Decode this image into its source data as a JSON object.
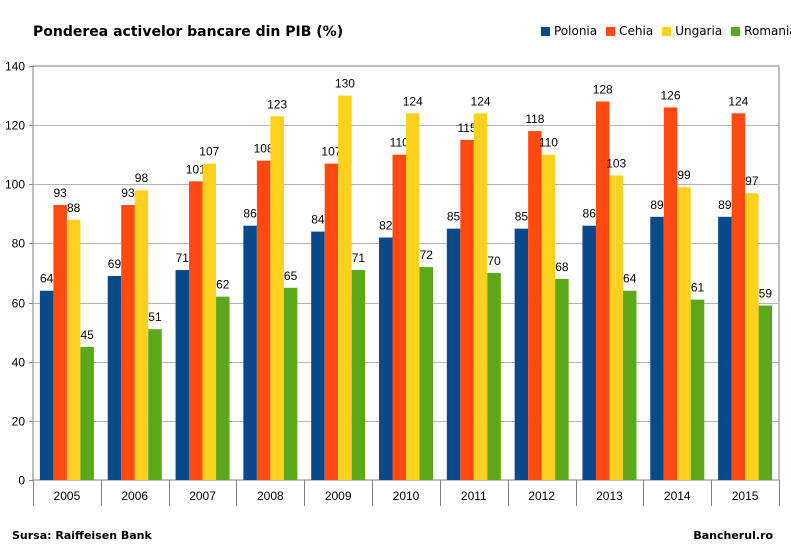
{
  "header": {
    "title": "Ponderea activelor bancare din PIB (%)"
  },
  "footer": {
    "source": "Sursa: Raiffeisen Bank",
    "brand": "Bancherul.ro"
  },
  "colors": {
    "Polonia": "#0a4a8a",
    "Cehia": "#ff4a11",
    "Ungaria": "#ffd11f",
    "Romania": "#5ca81a",
    "grid": "#b3b3b3",
    "axis": "#7f7f7f"
  },
  "chart_data": {
    "type": "bar",
    "title": "Ponderea activelor bancare din PIB (%)",
    "xlabel": "",
    "ylabel": "",
    "ylim": [
      0,
      140
    ],
    "yticks": [
      "0",
      "20",
      "40",
      "60",
      "80",
      "100",
      "120",
      "140"
    ],
    "grid": true,
    "legend_position": "top-right",
    "categories": [
      "2005",
      "2006",
      "2007",
      "2008",
      "2009",
      "2010",
      "2011",
      "2012",
      "2013",
      "2014",
      "2015"
    ],
    "series": [
      {
        "name": "Polonia",
        "values": [
          64,
          69,
          71,
          86,
          84,
          82,
          85,
          85,
          86,
          89,
          89
        ]
      },
      {
        "name": "Cehia",
        "values": [
          93,
          93,
          101,
          108,
          107,
          110,
          115,
          118,
          128,
          126,
          124
        ]
      },
      {
        "name": "Ungaria",
        "values": [
          88,
          98,
          107,
          123,
          130,
          124,
          124,
          110,
          103,
          99,
          97
        ]
      },
      {
        "name": "Romania",
        "values": [
          45,
          51,
          62,
          65,
          71,
          72,
          70,
          68,
          64,
          61,
          59
        ]
      }
    ]
  }
}
